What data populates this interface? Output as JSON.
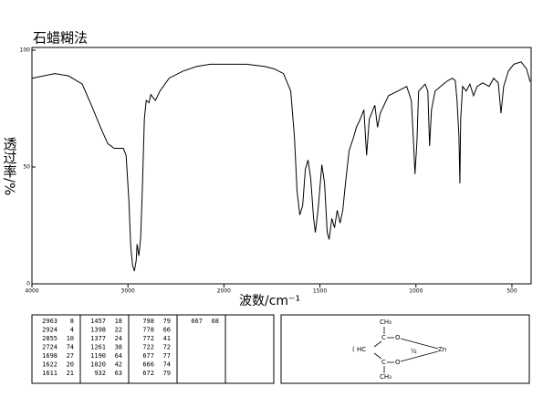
{
  "chart_data": {
    "type": "line",
    "title": "石蜡糊法",
    "x_label": "波数/cm⁻¹",
    "y_label": "透过率/%",
    "x": [
      4000,
      3762,
      3619,
      3476,
      3381,
      3286,
      3210,
      3143,
      3048,
      3019,
      2990,
      2971,
      2952,
      2933,
      2914,
      2905,
      2886,
      2867,
      2848,
      2829,
      2810,
      2781,
      2762,
      2714,
      2667,
      2571,
      2429,
      2286,
      2143,
      2000,
      1881,
      1786,
      1738,
      1690,
      1652,
      1633,
      1619,
      1605,
      1590,
      1576,
      1562,
      1548,
      1533,
      1524,
      1510,
      1490,
      1476,
      1462,
      1452,
      1438,
      1424,
      1410,
      1395,
      1381,
      1367,
      1348,
      1324,
      1310,
      1290,
      1271,
      1257,
      1243,
      1214,
      1200,
      1186,
      1143,
      1095,
      1048,
      1024,
      1014,
      1005,
      995,
      986,
      952,
      938,
      929,
      919,
      900,
      857,
      833,
      810,
      795,
      786,
      776,
      771,
      767,
      757,
      738,
      719,
      700,
      681,
      652,
      619,
      595,
      571,
      557,
      543,
      519,
      490,
      452,
      424,
      405
    ],
    "values": [
      88,
      90,
      89,
      85.5,
      76.5,
      67,
      60,
      58,
      58,
      55,
      35.5,
      16,
      8,
      5.5,
      10,
      17,
      12,
      20,
      43,
      70.5,
      78.5,
      77.5,
      81,
      78.5,
      82.5,
      88,
      91,
      93,
      94,
      94,
      94,
      93,
      92,
      90,
      82.5,
      63,
      39.5,
      29.5,
      33.5,
      49,
      53,
      45,
      28,
      22,
      31.5,
      51,
      43,
      22,
      19,
      28,
      24,
      31.5,
      26,
      31.5,
      43,
      57,
      63,
      67,
      70.5,
      74.5,
      55,
      70.5,
      76.5,
      67,
      73,
      80.5,
      82.5,
      84.5,
      78.5,
      63,
      47,
      60.5,
      82.5,
      85.5,
      82.5,
      59,
      74.5,
      82.5,
      85.5,
      87,
      88,
      87,
      78.5,
      63,
      43,
      70.5,
      84.5,
      82.5,
      85.5,
      80.5,
      84.5,
      86,
      84.5,
      88,
      86,
      73,
      84.5,
      91,
      94,
      95,
      92,
      86.5
    ],
    "color": "#000000",
    "xlim": [
      4000,
      400
    ],
    "xticks": [
      4000,
      3000,
      2000,
      1500,
      1000,
      500
    ],
    "x_break": 2000,
    "x_break_stretch": 2,
    "ylim": [
      0,
      100
    ],
    "yticks": [
      0,
      50,
      100
    ]
  },
  "peak_table": [
    [
      [
        2963,
        8
      ],
      [
        2924,
        4
      ],
      [
        2855,
        10
      ],
      [
        2724,
        74
      ],
      [
        1698,
        27
      ],
      [
        1622,
        20
      ],
      [
        1611,
        21
      ]
    ],
    [
      [
        1457,
        18
      ],
      [
        1398,
        22
      ],
      [
        1377,
        24
      ],
      [
        1261,
        38
      ],
      [
        1190,
        64
      ],
      [
        1020,
        42
      ],
      [
        932,
        63
      ]
    ],
    [
      [
        798,
        79
      ],
      [
        778,
        66
      ],
      [
        772,
        41
      ],
      [
        722,
        72
      ],
      [
        677,
        77
      ],
      [
        666,
        74
      ],
      [
        672,
        79
      ]
    ],
    [
      [
        667,
        68
      ]
    ]
  ],
  "structure": {
    "labels": [
      "CH₃",
      "C",
      "O",
      "( HC",
      "½",
      "Zn",
      "C",
      "O",
      "CH₃"
    ]
  }
}
